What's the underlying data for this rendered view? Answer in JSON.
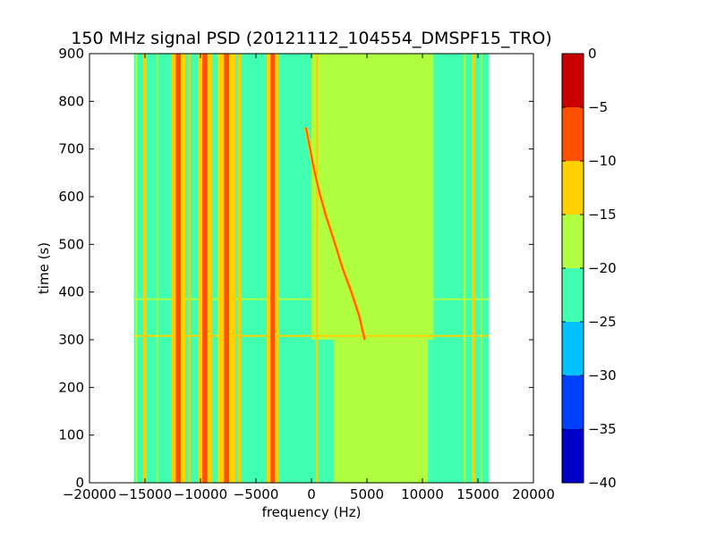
{
  "chart_data": {
    "type": "heatmap",
    "title": "150 MHz signal PSD (20121112_104554_DMSPF15_TRO)",
    "xlabel": "frequency (Hz)",
    "ylabel": "time (s)",
    "xlim": [
      -20000,
      20000
    ],
    "ylim": [
      0,
      900
    ],
    "x_ticks": [
      -20000,
      -15000,
      -10000,
      -5000,
      0,
      5000,
      10000,
      15000,
      20000
    ],
    "x_tick_labels": [
      "−20000",
      "−15000",
      "−10000",
      "−5000",
      "0",
      "5000",
      "10000",
      "15000",
      "20000"
    ],
    "y_ticks": [
      0,
      100,
      200,
      300,
      400,
      500,
      600,
      700,
      800,
      900
    ],
    "y_tick_labels": [
      "0",
      "100",
      "200",
      "300",
      "400",
      "500",
      "600",
      "700",
      "800",
      "900"
    ],
    "data_extent": {
      "x": [
        -16000,
        16000
      ],
      "y": [
        0,
        900
      ]
    },
    "background_level": -22.5,
    "colorbar": {
      "levels": [
        -40,
        -35,
        -30,
        -25,
        -20,
        -15,
        -10,
        -5,
        0
      ],
      "tick_labels": [
        "−40",
        "−35",
        "−30",
        "−25",
        "−20",
        "−15",
        "−10",
        "−5",
        "0"
      ],
      "colors": [
        "#0000c8",
        "#0040ff",
        "#00c0ff",
        "#40ffb0",
        "#b0ff40",
        "#ffd000",
        "#ff5000",
        "#c80000"
      ]
    },
    "bands": [
      {
        "x": [
          0,
          11000
        ],
        "y": [
          300,
          900
        ],
        "level": -17.5
      },
      {
        "x": [
          2000,
          10500
        ],
        "y": [
          0,
          300
        ],
        "level": -17.5
      }
    ],
    "lines": [
      {
        "x": -15800,
        "width": 180,
        "level": -17.5
      },
      {
        "x": -15000,
        "width": 300,
        "level": -12.5
      },
      {
        "x": -13900,
        "width": 150,
        "level": -17.5
      },
      {
        "x": -12000,
        "width": 450,
        "level": -7.5
      },
      {
        "x": -11000,
        "width": 180,
        "level": -12.5
      },
      {
        "x": -9600,
        "width": 450,
        "level": -7.5
      },
      {
        "x": -9100,
        "width": 200,
        "level": -12.5
      },
      {
        "x": -8400,
        "width": 180,
        "level": -17.5
      },
      {
        "x": -7600,
        "width": 550,
        "level": -7.5
      },
      {
        "x": -7300,
        "width": 250,
        "level": -12.5
      },
      {
        "x": -6500,
        "width": 280,
        "level": -12.5
      },
      {
        "x": -3500,
        "width": 380,
        "level": -7.5
      },
      {
        "x": 500,
        "width": 220,
        "level": -12.5
      },
      {
        "x": 13800,
        "width": 180,
        "level": -17.5
      },
      {
        "x": 14600,
        "width": 280,
        "level": -12.5
      },
      {
        "x": 15300,
        "width": 150,
        "level": -17.5
      }
    ],
    "tracks": [
      {
        "points": [
          [
            -500,
            745
          ],
          [
            -200,
            710
          ],
          [
            200,
            660
          ],
          [
            700,
            610
          ],
          [
            1300,
            560
          ],
          [
            2000,
            510
          ],
          [
            2800,
            450
          ],
          [
            3600,
            400
          ],
          [
            4300,
            350
          ],
          [
            4800,
            300
          ]
        ],
        "level": -7.5
      }
    ],
    "time_stripes": [
      {
        "y": 308,
        "level": -12.5
      },
      {
        "y": 385,
        "level": -17.5
      }
    ]
  }
}
